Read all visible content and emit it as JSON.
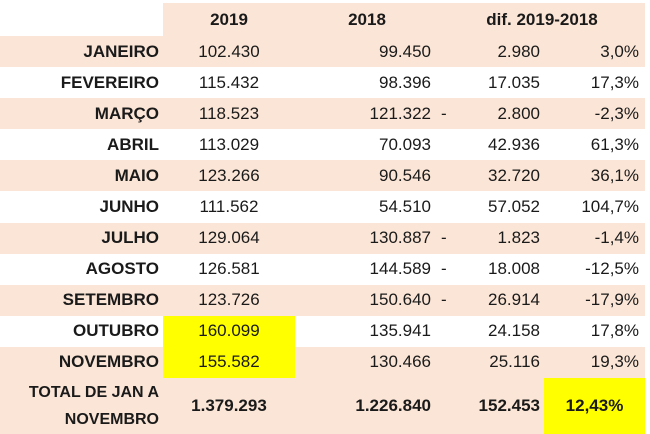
{
  "header": {
    "col_2019": "2019",
    "col_2018": "2018",
    "col_diff": "dif. 2019-2018"
  },
  "rows": [
    {
      "month": "JANEIRO",
      "v2019": "102.430",
      "v2018": "99.450",
      "sign": "",
      "diff": "2.980",
      "pct": "3,0%"
    },
    {
      "month": "FEVEREIRO",
      "v2019": "115.432",
      "v2018": "98.396",
      "sign": "",
      "diff": "17.035",
      "pct": "17,3%"
    },
    {
      "month": "MARÇO",
      "v2019": "118.523",
      "v2018": "121.322",
      "sign": "-",
      "diff": "2.800",
      "pct": "-2,3%"
    },
    {
      "month": "ABRIL",
      "v2019": "113.029",
      "v2018": "70.093",
      "sign": "",
      "diff": "42.936",
      "pct": "61,3%"
    },
    {
      "month": "MAIO",
      "v2019": "123.266",
      "v2018": "90.546",
      "sign": "",
      "diff": "32.720",
      "pct": "36,1%"
    },
    {
      "month": "JUNHO",
      "v2019": "111.562",
      "v2018": "54.510",
      "sign": "",
      "diff": "57.052",
      "pct": "104,7%"
    },
    {
      "month": "JULHO",
      "v2019": "129.064",
      "v2018": "130.887",
      "sign": "-",
      "diff": "1.823",
      "pct": "-1,4%"
    },
    {
      "month": "AGOSTO",
      "v2019": "126.581",
      "v2018": "144.589",
      "sign": "-",
      "diff": "18.008",
      "pct": "-12,5%"
    },
    {
      "month": "SETEMBRO",
      "v2019": "123.726",
      "v2018": "150.640",
      "sign": "-",
      "diff": "26.914",
      "pct": "-17,9%"
    },
    {
      "month": "OUTUBRO",
      "v2019": "160.099",
      "v2018": "135.941",
      "sign": "",
      "diff": "24.158",
      "pct": "17,8%"
    },
    {
      "month": "NOVEMBRO",
      "v2019": "155.582",
      "v2018": "130.466",
      "sign": "",
      "diff": "25.116",
      "pct": "19,3%"
    }
  ],
  "total": {
    "label": "TOTAL DE JAN A NOVEMBRO",
    "v2019": "1.379.293",
    "v2018": "1.226.840",
    "diff": "152.453",
    "pct": "12,43%"
  },
  "colors": {
    "row_tint": "#fbe5d6",
    "highlight": "#ffff00"
  }
}
